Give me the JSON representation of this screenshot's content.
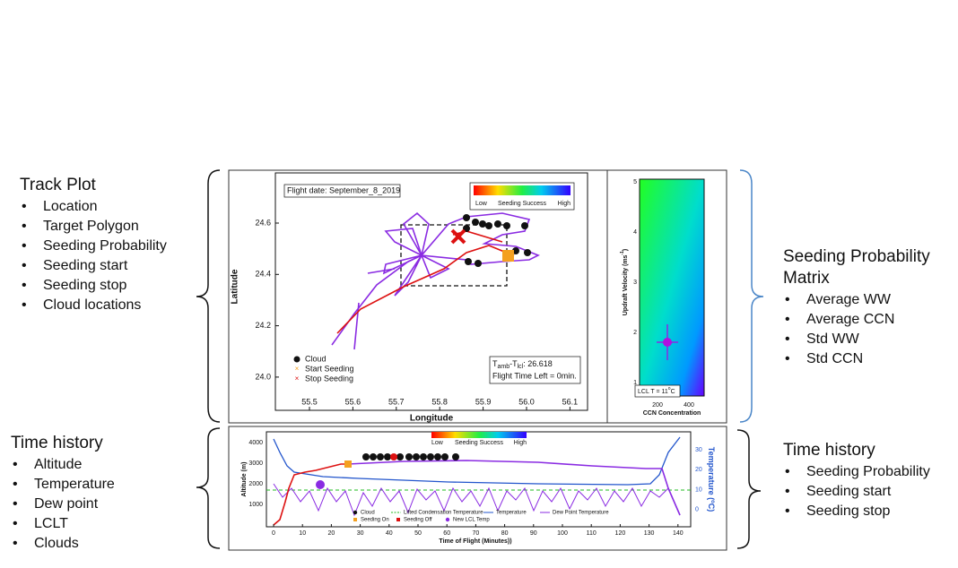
{
  "left_top": {
    "title": "Track Plot",
    "items": [
      "Location",
      "Target Polygon",
      "Seeding Probability",
      "Seeding start",
      "Seeding stop",
      "Cloud locations"
    ]
  },
  "left_bottom": {
    "title": "Time history",
    "items": [
      "Altitude",
      "Temperature",
      "Dew point",
      "LCLT",
      "Clouds"
    ]
  },
  "right_top": {
    "title": [
      "Seeding Probability",
      "Matrix"
    ],
    "items": [
      "Average WW",
      "Average CCN",
      "Std WW",
      "Std CCN"
    ]
  },
  "right_bottom": {
    "title": "Time history",
    "items": [
      "Seeding Probability",
      "Seeding start",
      "Seeding stop"
    ]
  },
  "track_plot": {
    "flight_date": "Flight date: September_8_2019",
    "colorbar": [
      "Low",
      "Seeding Success",
      "High"
    ],
    "x_label": "Longitude",
    "y_label": "Latitude",
    "x_ticks": [
      "55.5",
      "55.6",
      "55.7",
      "55.8",
      "55.9",
      "56.0",
      "56.1"
    ],
    "y_ticks": [
      "24.6",
      "24.4",
      "24.2",
      "24.0"
    ],
    "legend": [
      "Cloud",
      "Start Seeding",
      "Stop Seeding"
    ],
    "info": [
      "T",
      "amb",
      "-T",
      "lcl",
      ": 26.618",
      "Flight Time Left = 0min."
    ]
  },
  "matrix": {
    "y_label": "Updraft Velocity (ms",
    "y_label_sup": "-1",
    "y_label_end": ")",
    "y_ticks": [
      "5",
      "4",
      "3",
      "2",
      "1"
    ],
    "x_ticks": [
      "200",
      "400"
    ],
    "x_label": "CCN Concentration",
    "lcl": [
      "LCL T = 11",
      "o",
      "C"
    ]
  },
  "time_plot": {
    "colorbar": [
      "Low",
      "Seeding Success",
      "High"
    ],
    "y_ticks": [
      "4000",
      "3000",
      "2000",
      "1000"
    ],
    "y_label": "Altitude (m)",
    "y2_ticks": [
      "30",
      "20",
      "10",
      "0"
    ],
    "y2_label": [
      "Temperature (",
      "o",
      "C)"
    ],
    "x_ticks": [
      "0",
      "10",
      "20",
      "30",
      "40",
      "50",
      "60",
      "70",
      "80",
      "90",
      "100",
      "110",
      "120",
      "130",
      "140"
    ],
    "x_label": "Time of Flight (Minutes))",
    "legend": [
      "Cloud",
      "Lifted Condensation Temperature",
      "Temperature",
      "Dew Point Temperature",
      "Seeding On",
      "Seeding Off",
      "New LCL Temp"
    ]
  }
}
